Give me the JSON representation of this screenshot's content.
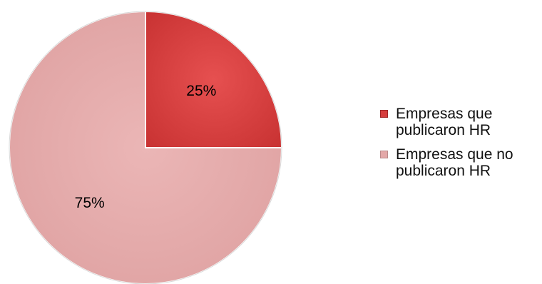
{
  "chart_data": {
    "type": "pie",
    "categories": [
      "Empresas que\npublicaron HR",
      "Empresas que no\npublicaron HR"
    ],
    "values": [
      25,
      75
    ],
    "data_labels": [
      "25%",
      "75%"
    ],
    "colors": [
      "#d63e3e",
      "#e3a8a8"
    ],
    "legend_position": "right",
    "start_angle_deg": 0,
    "direction": "clockwise"
  }
}
